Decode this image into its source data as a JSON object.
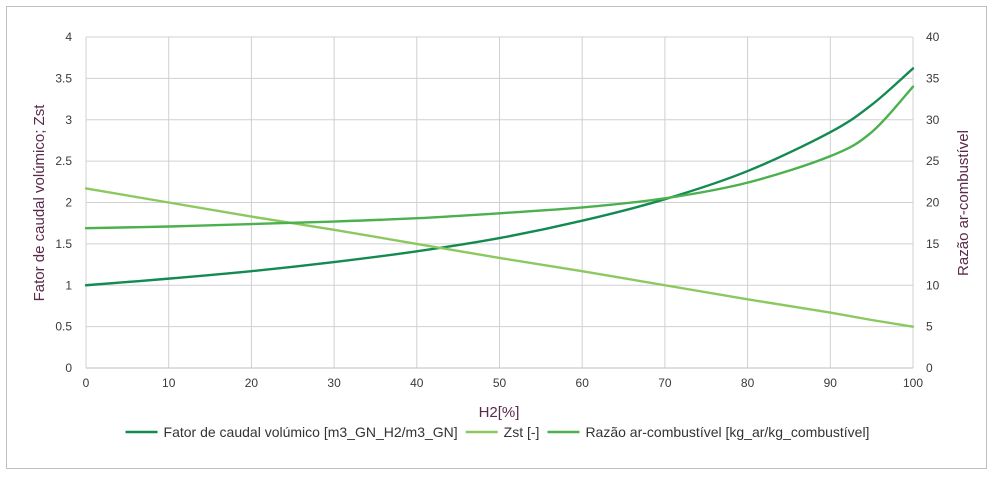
{
  "chart_data": {
    "type": "line",
    "xlabel": "H2[%]",
    "ylabel_left": "Fator de caudal volúmico; Zst",
    "ylabel_right": "Razão ar-combustível",
    "xlim": [
      0,
      100
    ],
    "ylim_left": [
      0,
      4
    ],
    "ylim_right": [
      0,
      40
    ],
    "x_ticks": [
      "0",
      "10",
      "20",
      "30",
      "40",
      "50",
      "60",
      "70",
      "80",
      "90",
      "100"
    ],
    "y_left_ticks": [
      "0",
      "0.5",
      "1",
      "1.5",
      "2",
      "2.5",
      "3",
      "3.5",
      "4"
    ],
    "y_right_ticks": [
      "0",
      "5",
      "10",
      "15",
      "20",
      "25",
      "30",
      "35",
      "40"
    ],
    "grid": true,
    "legend_position": "bottom",
    "x": [
      0,
      10,
      20,
      30,
      40,
      50,
      60,
      70,
      80,
      90,
      95,
      100
    ],
    "series": [
      {
        "name": "Fator de caudal volúmico [m3_GN_H2/m3_GN]",
        "axis": "left",
        "color": "#138a52",
        "values": [
          1.0,
          1.08,
          1.17,
          1.28,
          1.41,
          1.57,
          1.78,
          2.04,
          2.38,
          2.85,
          3.18,
          3.62
        ]
      },
      {
        "name": "Zst [-]",
        "axis": "left",
        "color": "#8cc860",
        "values": [
          2.17,
          2.0,
          1.83,
          1.67,
          1.5,
          1.33,
          1.17,
          1.0,
          0.83,
          0.67,
          0.58,
          0.5
        ]
      },
      {
        "name": "Razão ar-combustível [kg_ar/kg_combustível]",
        "axis": "right",
        "color": "#4bb04e",
        "values": [
          16.9,
          17.1,
          17.4,
          17.7,
          18.1,
          18.7,
          19.4,
          20.5,
          22.4,
          25.6,
          28.5,
          34.0
        ]
      }
    ]
  }
}
